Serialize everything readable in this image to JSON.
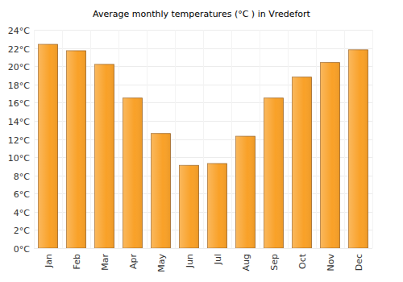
{
  "chart_data": {
    "type": "bar",
    "title": "Average monthly temperatures (°C ) in Vredefort",
    "categories": [
      "Jan",
      "Feb",
      "Mar",
      "Apr",
      "May",
      "Jun",
      "Jul",
      "Aug",
      "Sep",
      "Oct",
      "Nov",
      "Dec"
    ],
    "values": [
      22.4,
      21.7,
      20.2,
      16.5,
      12.6,
      9.1,
      9.3,
      12.3,
      16.5,
      18.8,
      20.4,
      21.8
    ],
    "color": "#f9a128",
    "ylim": [
      0,
      24
    ],
    "yticks": [
      {
        "value": 0,
        "label": "0°C"
      },
      {
        "value": 2,
        "label": "2°C"
      },
      {
        "value": 4,
        "label": "4°C"
      },
      {
        "value": 6,
        "label": "6°C"
      },
      {
        "value": 8,
        "label": "8°C"
      },
      {
        "value": 10,
        "label": "10°C"
      },
      {
        "value": 12,
        "label": "12°C"
      },
      {
        "value": 14,
        "label": "14°C"
      },
      {
        "value": 16,
        "label": "16°C"
      },
      {
        "value": 18,
        "label": "18°C"
      },
      {
        "value": 20,
        "label": "20°C"
      },
      {
        "value": 22,
        "label": "22°C"
      },
      {
        "value": 24,
        "label": "24°C"
      }
    ],
    "grid": true
  }
}
